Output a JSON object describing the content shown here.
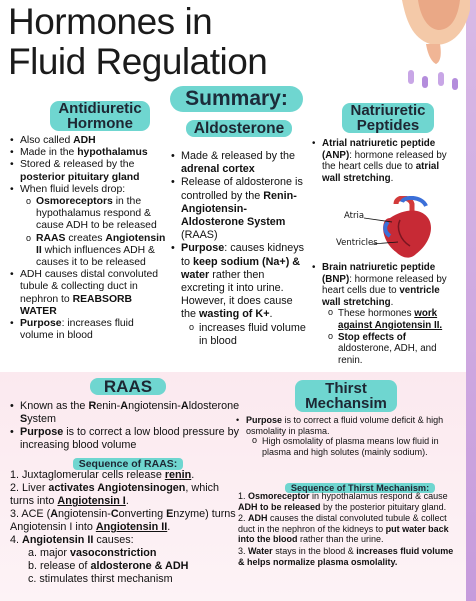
{
  "title": [
    "Hormones in",
    "Fluid Regulation"
  ],
  "summary": "Summary:",
  "adh": {
    "heading": [
      "Antidiuretic",
      "Hormone"
    ],
    "items": [
      {
        "type": "dot",
        "parts": [
          "Also called ",
          "ADH",
          ""
        ]
      },
      {
        "type": "dot",
        "parts": [
          "Made in the ",
          "hypothalamus",
          ""
        ]
      },
      {
        "type": "dot",
        "parts": [
          "Stored & released by the ",
          "posterior pituitary gland",
          ""
        ]
      },
      {
        "type": "dot",
        "parts": [
          "When fluid levels drop:",
          "",
          ""
        ]
      },
      {
        "type": "circ",
        "parts": [
          "",
          "Osmoreceptors",
          " in the hypothalamus respond & cause ADH to be released"
        ]
      },
      {
        "type": "circ",
        "parts": [
          "",
          "RAAS",
          " creates "
        ]
      },
      {
        "type": "dot",
        "parts": [
          "ADH causes distal convoluted tubule & collecting duct in nephron to ",
          "REABSORB WATER",
          ""
        ]
      },
      {
        "type": "dot",
        "parts": [
          "",
          "Purpose",
          ": increases fluid volume in blood"
        ]
      }
    ],
    "raas_tail_bold": "Angiotensin II",
    "raas_tail": " which influences ADH & causes it to be released"
  },
  "aldo": {
    "heading": "Aldosterone",
    "made": [
      "Made & released by the ",
      "adrenal cortex"
    ],
    "release": [
      "Release of aldosterone is controlled by the ",
      "Renin-Angiotensin-Aldosterone System",
      " (RAAS)"
    ],
    "purpose": [
      "Purpose",
      ": causes kidneys to ",
      "keep sodium (Na+) & water",
      " rather then excreting it into urine. However, it does cause the ",
      "wasting of K+",
      "."
    ],
    "sub": "increases fluid volume in blood"
  },
  "np": {
    "heading": [
      "Natriuretic",
      "Peptides"
    ],
    "anp": [
      "Atrial natriuretic peptide (ANP)",
      ": hormone released by the heart cells due to ",
      "atrial wall stretching",
      "."
    ],
    "atria": "Atria",
    "ventricles": "Ventricles",
    "bnp": [
      "Brain natriuretic peptide (BNP)",
      ": hormone released by heart cells due to ",
      "ventricle wall stretching",
      "."
    ],
    "sub1": [
      "These hormones ",
      "work against Angiotensin II."
    ],
    "sub2": [
      "Stop effects of",
      " aldosterone, ADH, and renin."
    ]
  },
  "raas": {
    "heading": "RAAS",
    "known": [
      "Known as the ",
      "R",
      "enin-",
      "A",
      "ngiotensin-",
      "A",
      "ldosterone ",
      "S",
      "ystem"
    ],
    "purpose": [
      "Purpose",
      " is to correct a low blood pressure by increasing blood volume"
    ],
    "seq_head": "Sequence of RAAS:",
    "steps": [
      [
        "1. ",
        "Juxtaglomerular cells release ",
        "renin",
        "."
      ],
      [
        "2. ",
        "Liver ",
        "activates Angiotensinogen",
        ", which turns into ",
        "Angiotensin I",
        "."
      ],
      [
        "3. ",
        "ACE (",
        "A",
        "ngiotensin-",
        "C",
        "onverting ",
        "E",
        "nzyme) turns Angiotensin I into ",
        "Angiotensin II",
        "."
      ],
      [
        "4. ",
        "Angiotensin II",
        " causes:"
      ]
    ],
    "sub": [
      [
        "a. ",
        "major ",
        "vasoconstriction",
        ""
      ],
      [
        "b. ",
        "release of ",
        "aldosterone & ADH",
        ""
      ],
      [
        "c. ",
        "stimulates thirst mechanism",
        "",
        ""
      ]
    ]
  },
  "thirst": {
    "heading": [
      "Thirst",
      "Mechansim"
    ],
    "purpose": [
      "Purpose",
      " is to correct a fluid volume deficit & high osmolality in plasma."
    ],
    "sub": "High osmolality of plasma means low fluid in plasma and high solutes (mainly sodium).",
    "seq_head": "Sequence of Thirst Mechanism:",
    "steps": [
      [
        "1. ",
        "Osmoreceptor",
        " in hypothalamus respond & cause ",
        "ADH to be released",
        " by the posterior pituitary gland."
      ],
      [
        "2. ",
        "ADH",
        " causes the distal convoluted tubule & collect duct in the nephron of the kidneys to ",
        "put water back into the blood",
        " rather than the urine."
      ],
      [
        "3. ",
        "Water",
        " stays in the blood & ",
        "increases fluid volume & helps normalize plasma osmolality.",
        ""
      ]
    ]
  }
}
